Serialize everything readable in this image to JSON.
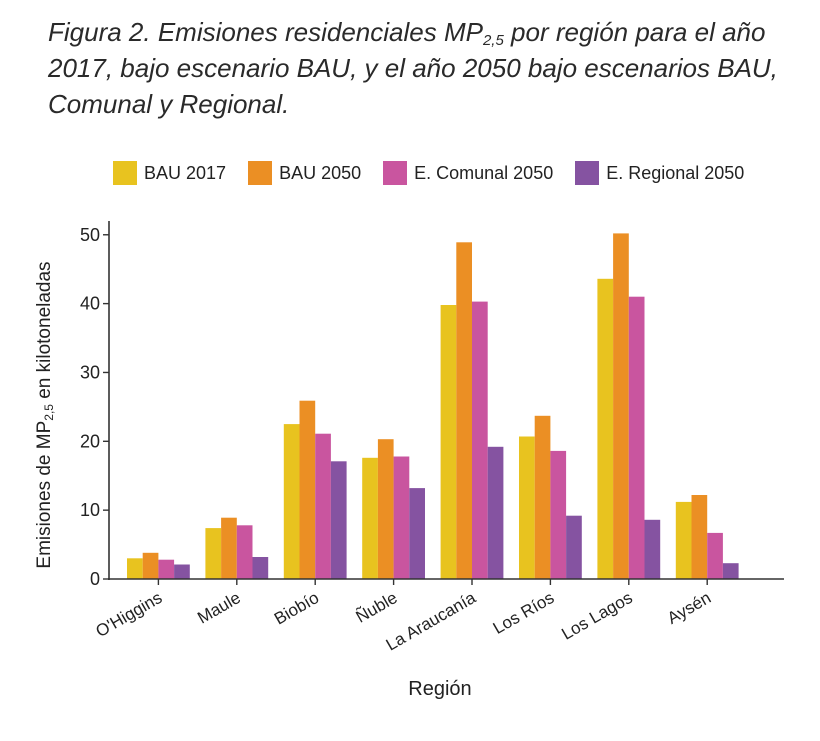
{
  "caption": {
    "figure_label": "Figura 2.",
    "text_part1": " Emisiones residenciales MP",
    "subscript": "2,5",
    "text_part2": " por región para el año 2017, bajo escenario BAU, y el año 2050 bajo escenarios BAU, Comunal y Regional."
  },
  "chart_data": {
    "type": "bar",
    "title": "",
    "xlabel": "Región",
    "ylabel": {
      "prefix": "Emisiones de MP",
      "subscript": "2,5",
      "suffix": " en kilotoneladas"
    },
    "ylim": [
      0,
      52
    ],
    "yticks": [
      0,
      10,
      20,
      30,
      40,
      50
    ],
    "grid": false,
    "legend_position": "top",
    "categories": [
      "O'Higgins",
      "Maule",
      "Biobío",
      "Ñuble",
      "La Araucanía",
      "Los Ríos",
      "Los Lagos",
      "Aysén"
    ],
    "series": [
      {
        "name": "BAU 2017",
        "color": "#E8C31F",
        "values": [
          3.0,
          7.4,
          22.5,
          17.6,
          39.8,
          20.7,
          43.6,
          11.2
        ]
      },
      {
        "name": "BAU 2050",
        "color": "#EB8F24",
        "values": [
          3.8,
          8.9,
          25.9,
          20.3,
          48.9,
          23.7,
          50.2,
          12.2
        ]
      },
      {
        "name": "E. Comunal 2050",
        "color": "#C9559F",
        "values": [
          2.8,
          7.8,
          21.1,
          17.8,
          40.3,
          18.6,
          41.0,
          6.7
        ]
      },
      {
        "name": "E. Regional 2050",
        "color": "#8553A1",
        "values": [
          2.1,
          3.2,
          17.1,
          13.2,
          19.2,
          9.2,
          8.6,
          2.3
        ]
      }
    ]
  }
}
